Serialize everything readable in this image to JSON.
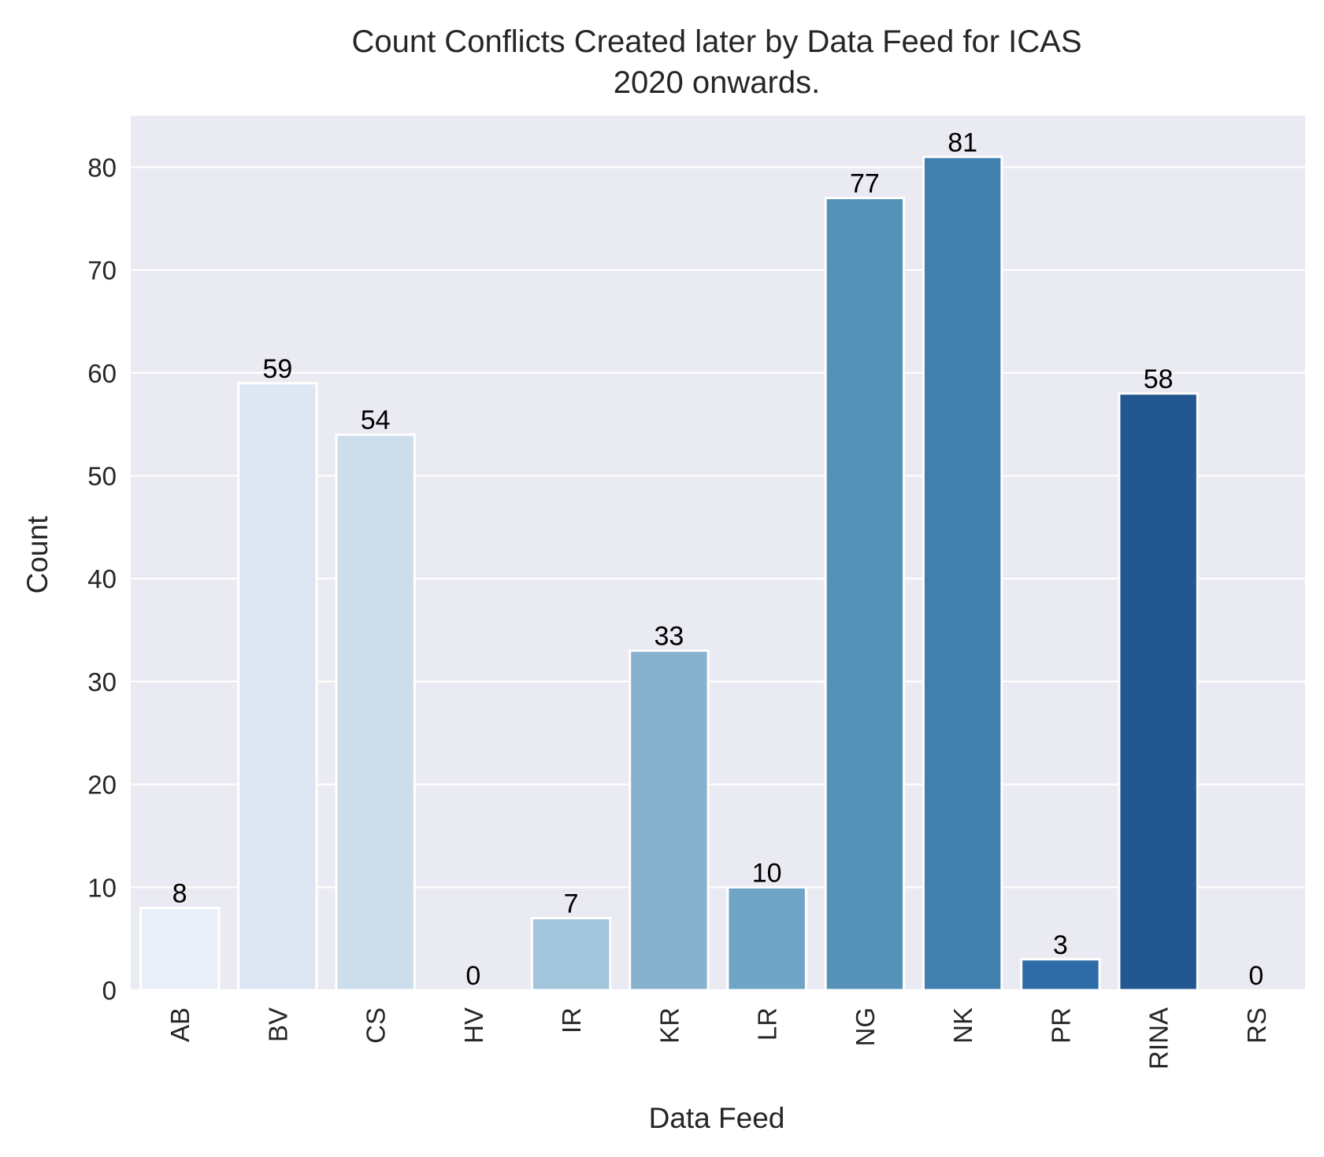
{
  "chart_data": {
    "type": "bar",
    "title_lines": [
      "Count Conflicts Created later by Data Feed for ICAS",
      "2020 onwards."
    ],
    "xlabel": "Data Feed",
    "ylabel": "Count",
    "categories": [
      "AB",
      "BV",
      "CS",
      "HV",
      "IR",
      "KR",
      "LR",
      "NG",
      "NK",
      "PR",
      "RINA",
      "RS"
    ],
    "values": [
      8,
      59,
      54,
      0,
      7,
      33,
      10,
      77,
      81,
      3,
      58,
      0
    ],
    "data_labels": [
      "8",
      "59",
      "54",
      "0",
      "7",
      "33",
      "10",
      "77",
      "81",
      "3",
      "58",
      "0"
    ],
    "colors": [
      "#e8eff8",
      "#dce7f3",
      "#ccdeec",
      "#bad6ea",
      "#a3c5dc",
      "#86b2cf",
      "#6ea4c6",
      "#5691b8",
      "#417fae",
      "#2e6ca7",
      "#235790",
      "#1e5a99"
    ],
    "ylim": [
      0,
      85
    ],
    "yticks": [
      0,
      10,
      20,
      30,
      40,
      50,
      60,
      70,
      80
    ],
    "ytick_labels": [
      "0",
      "10",
      "20",
      "30",
      "40",
      "50",
      "60",
      "70",
      "80"
    ],
    "grid": true,
    "background": "#eaeaf2",
    "grid_color": "#ffffff",
    "bar_edge_color": "#ffffff"
  }
}
